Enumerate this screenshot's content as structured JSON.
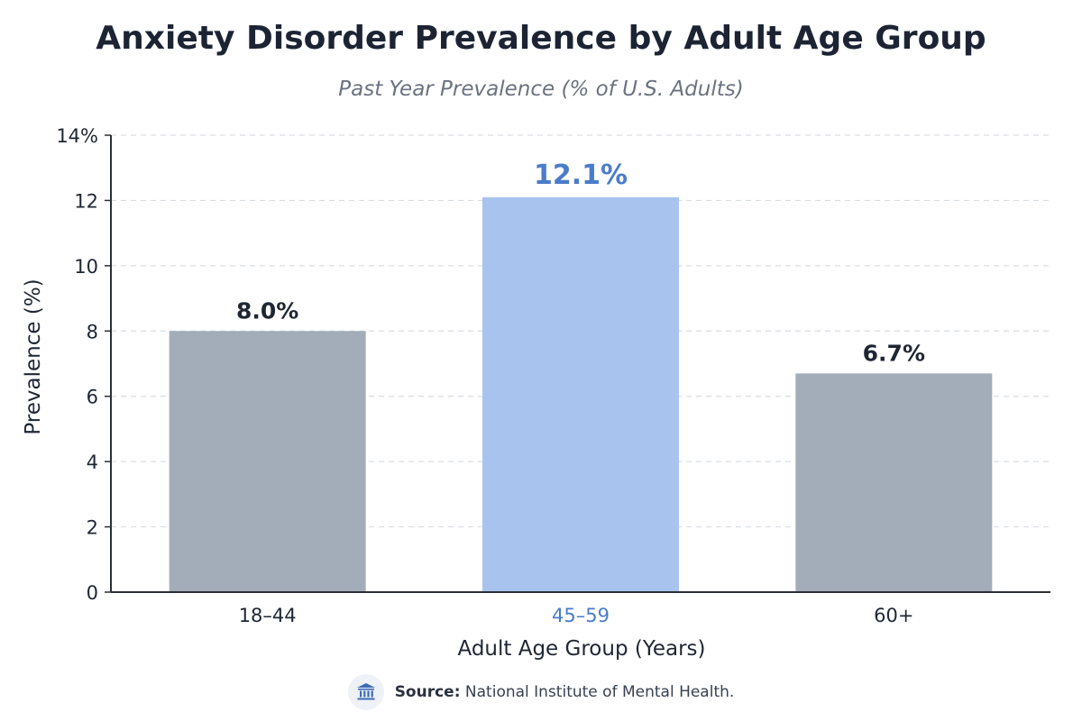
{
  "chart_data": {
    "type": "bar",
    "title": "Anxiety Disorder Prevalence by Adult Age Group",
    "subtitle": "Past Year Prevalence (% of U.S. Adults)",
    "xlabel": "Adult Age Group (Years)",
    "ylabel": "Prevalence (%)",
    "categories": [
      "18–44",
      "45–59",
      "60+"
    ],
    "values": [
      8.0,
      12.1,
      6.7
    ],
    "data_labels": [
      "8.0%",
      "12.1%",
      "6.7%"
    ],
    "ylim": [
      0,
      14
    ],
    "yticks": [
      0,
      2,
      4,
      6,
      8,
      10,
      12,
      14
    ],
    "ytick_labels": [
      "0",
      "2",
      "4",
      "6",
      "8",
      "10",
      "12",
      "14%"
    ],
    "highlight_index": 1,
    "grid": "horizontal dashed",
    "colors": {
      "bar": "#a3adb9",
      "highlight_bar": "#a8c4ee",
      "highlight_text": "#4a7cc9",
      "label_text": "#1f2633",
      "grid": "#d9dde3",
      "axis": "#2b2f36"
    }
  },
  "source": {
    "icon": "institution-icon",
    "label": "Source:",
    "text": "National Institute of Mental Health."
  }
}
